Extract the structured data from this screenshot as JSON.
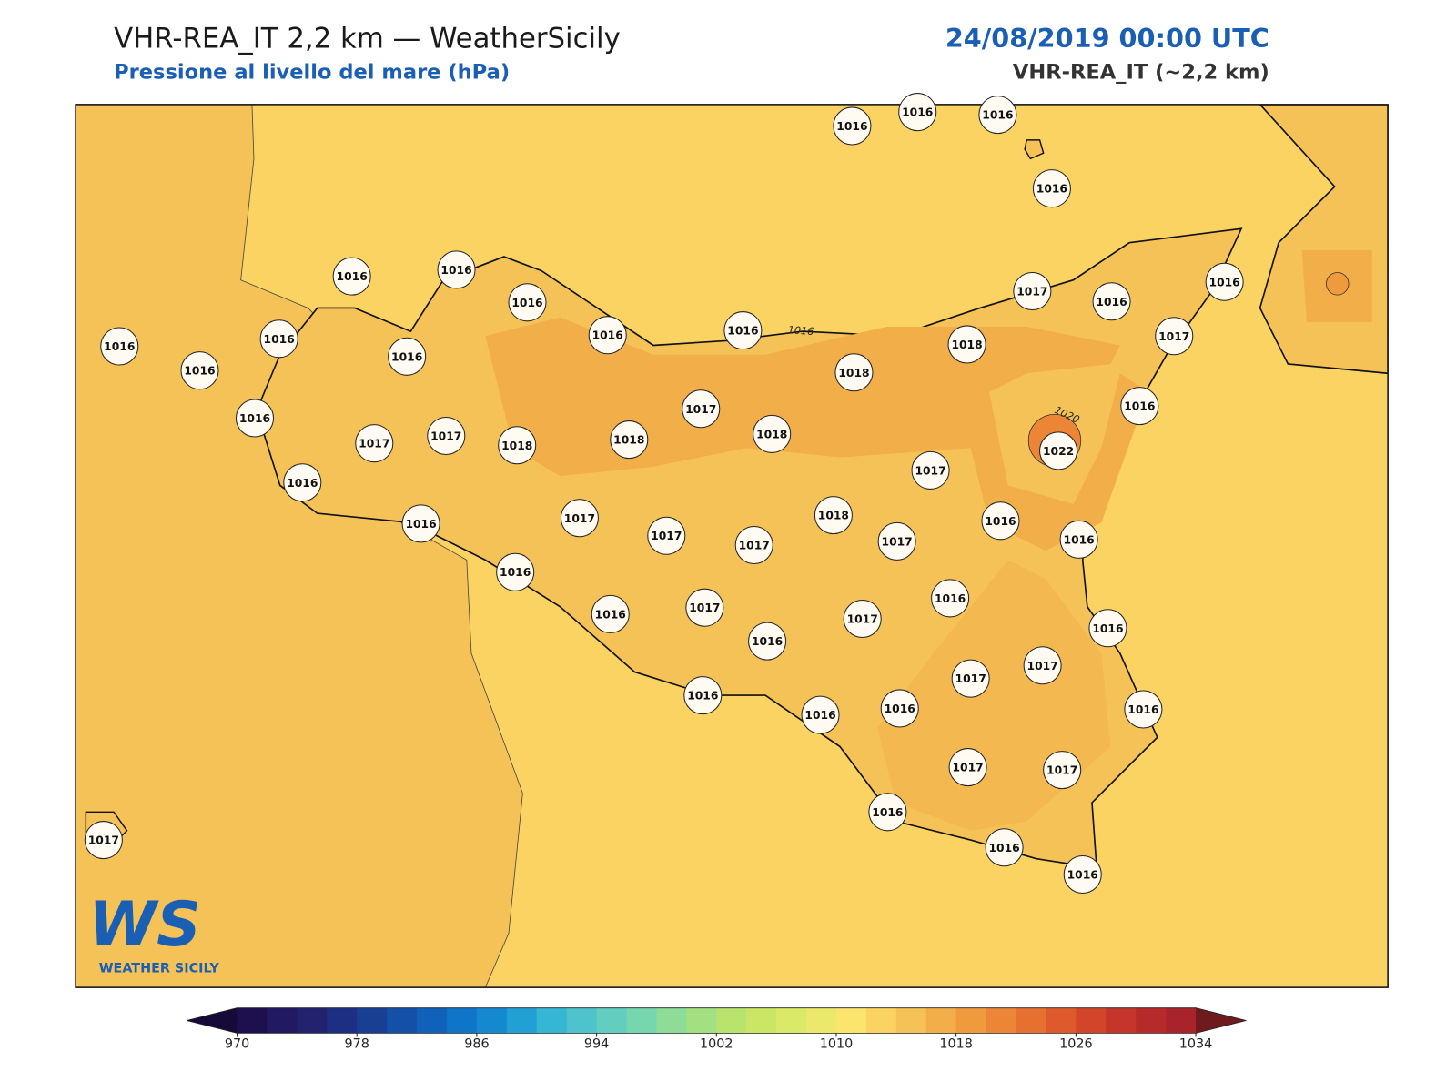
{
  "header": {
    "title": "VHR-REA_IT 2,2 km — WeatherSicily",
    "subtitle": "Pressione al livello del mare (hPa)",
    "date": "24/08/2019 00:00 UTC",
    "model": "VHR-REA_IT (~2,2 km)"
  },
  "map": {
    "stations": [
      1016,
      1016,
      1016,
      1016,
      1016,
      1016,
      1016,
      1016,
      1016,
      1016,
      1016,
      1016,
      1016,
      1017,
      1016,
      1016,
      1017,
      1018,
      1018,
      1016,
      1016,
      1017,
      1017,
      1018,
      1018,
      1017,
      1018,
      1022,
      1017,
      1016,
      1016,
      1017,
      1017,
      1017,
      1018,
      1017,
      1016,
      1016,
      1016,
      1016,
      1017,
      1016,
      1017,
      1016,
      1016,
      1017,
      1017,
      1016,
      1016,
      1016,
      1016,
      1017,
      1017,
      1016,
      1016,
      1016,
      1017
    ],
    "contour_labels": [
      1016,
      1020
    ]
  },
  "logo": {
    "mark": "WS",
    "name": "WEATHER SICILY"
  },
  "colorbar": {
    "ticks": [
      970,
      978,
      986,
      994,
      1002,
      1010,
      1018,
      1026,
      1034
    ],
    "step": 2,
    "colors": [
      "#1e0f4e",
      "#211a62",
      "#22226f",
      "#1d2f82",
      "#193f95",
      "#1550a8",
      "#1161ba",
      "#0f75c8",
      "#1589cf",
      "#21a0d5",
      "#35b6d5",
      "#4ec3cc",
      "#63cdbf",
      "#76d6ae",
      "#8ddc98",
      "#a3e082",
      "#b8e36d",
      "#cbe665",
      "#dbe968",
      "#ebe86c",
      "#fbe56c",
      "#fbd362",
      "#f5c257",
      "#f2ae48",
      "#f09a3e",
      "#ec8636",
      "#e76f30",
      "#de5a2c",
      "#d2452b",
      "#c5352b",
      "#b72a2a",
      "#a8232a"
    ],
    "under_color": "#160b38",
    "over_color": "#6f1a1c"
  }
}
